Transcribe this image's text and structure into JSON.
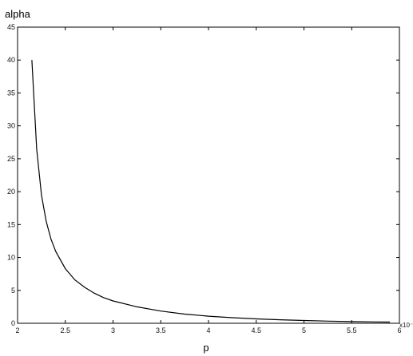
{
  "chart_data": {
    "type": "line",
    "title": "",
    "ylabel": "alpha",
    "xlabel": "p",
    "x_exponent_label": "x10⁻²",
    "xlim": [
      2,
      6
    ],
    "ylim": [
      0,
      45
    ],
    "grid": false,
    "x_ticks": [
      "2",
      "2.5",
      "3",
      "3.5",
      "4",
      "4.5",
      "5",
      "5.5",
      "6"
    ],
    "y_ticks": [
      "0",
      "5",
      "10",
      "15",
      "20",
      "25",
      "30",
      "35",
      "40",
      "45"
    ],
    "series": [
      {
        "x": [
          2.15,
          2.2,
          2.25,
          2.3,
          2.35,
          2.4,
          2.5,
          2.6,
          2.7,
          2.8,
          2.9,
          3.0,
          3.25,
          3.5,
          3.75,
          4.0,
          4.25,
          4.5,
          4.75,
          5.0,
          5.25,
          5.5,
          5.75,
          5.9
        ],
        "y": [
          40,
          26.5,
          19.5,
          15.5,
          12.8,
          10.9,
          8.3,
          6.6,
          5.5,
          4.6,
          3.9,
          3.4,
          2.5,
          1.85,
          1.4,
          1.08,
          0.85,
          0.67,
          0.53,
          0.42,
          0.33,
          0.26,
          0.21,
          0.18
        ]
      }
    ]
  }
}
